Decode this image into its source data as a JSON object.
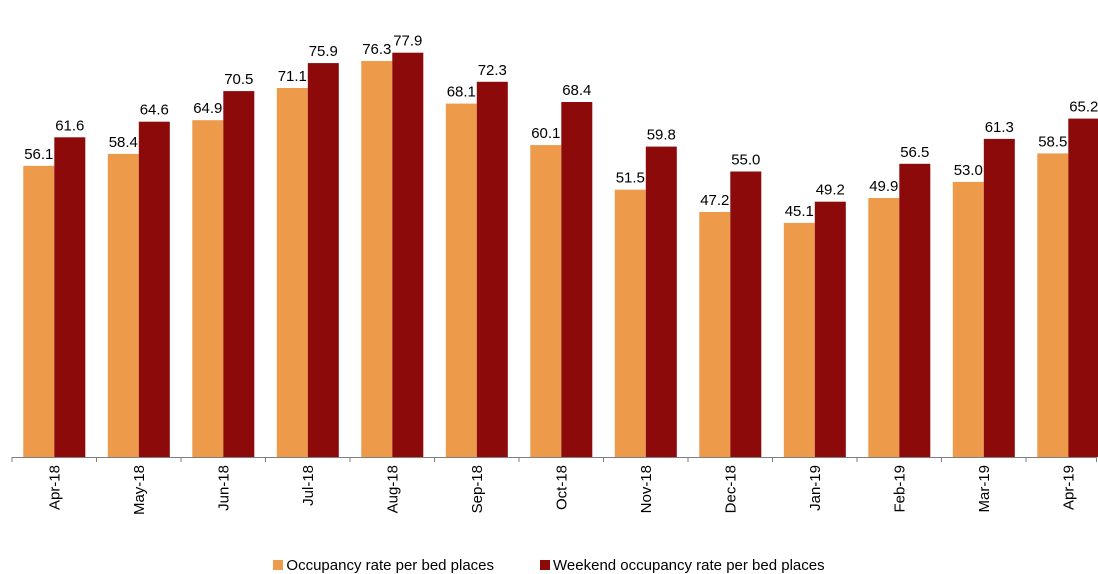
{
  "chart_data": {
    "type": "bar",
    "categories": [
      "Apr-18",
      "May-18",
      "Jun-18",
      "Jul-18",
      "Aug-18",
      "Sep-18",
      "Oct-18",
      "Nov-18",
      "Dec-18",
      "Jan-19",
      "Feb-19",
      "Mar-19",
      "Apr-19"
    ],
    "series": [
      {
        "name": "Occupancy rate per bed places",
        "color": "#ED9A4B",
        "values": [
          56.1,
          58.4,
          64.9,
          71.1,
          76.3,
          68.1,
          60.1,
          51.5,
          47.2,
          45.1,
          49.9,
          53.0,
          58.5
        ]
      },
      {
        "name": "Weekend occupancy rate per bed places",
        "color": "#8C0A0A",
        "values": [
          61.6,
          64.6,
          70.5,
          75.9,
          77.9,
          72.3,
          68.4,
          59.8,
          55.0,
          49.2,
          56.5,
          61.3,
          65.2
        ]
      }
    ],
    "ylim": [
      0,
      80
    ],
    "grid": false,
    "data_labels": true,
    "legend_position": "bottom"
  }
}
